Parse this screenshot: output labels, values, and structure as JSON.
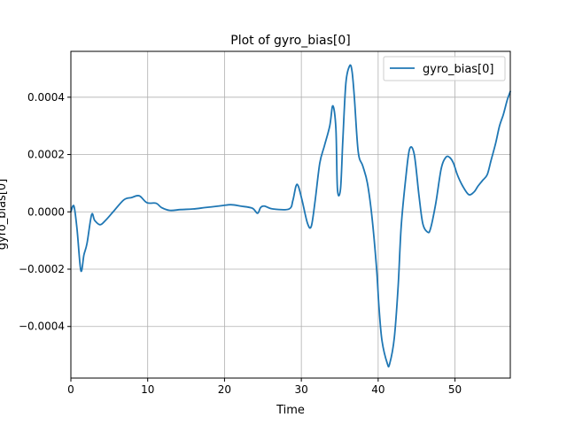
{
  "chart_data": {
    "type": "line",
    "title": "Plot of gyro_bias[0]",
    "xlabel": "Time",
    "ylabel": "gyro_bias[0]",
    "xlim": [
      0,
      57.2
    ],
    "ylim": [
      -0.00058,
      0.00056
    ],
    "xticks": [
      0,
      10,
      20,
      30,
      40,
      50
    ],
    "xtick_labels": [
      "0",
      "10",
      "20",
      "30",
      "40",
      "50"
    ],
    "yticks": [
      -0.0004,
      -0.0002,
      0.0,
      0.0002,
      0.0004
    ],
    "ytick_labels": [
      "−0.0004",
      "−0.0002",
      "0.0000",
      "0.0002",
      "0.0004"
    ],
    "grid": true,
    "legend": "top-right",
    "series": [
      {
        "name": "gyro_bias[0]",
        "color": "#1f77b4",
        "x": [
          0,
          0.4,
          0.8,
          1.3,
          1.7,
          2.1,
          2.7,
          3.1,
          3.8,
          4.5,
          5.5,
          6.9,
          7.9,
          8.9,
          9.9,
          11.1,
          11.8,
          12.9,
          14.3,
          15.9,
          17.5,
          19.2,
          20.8,
          22.1,
          23.6,
          24.3,
          24.7,
          25.2,
          26.3,
          28.4,
          28.9,
          29.3,
          29.6,
          30.1,
          30.8,
          31.3,
          31.8,
          32.4,
          33.0,
          33.7,
          34.1,
          34.5,
          34.7,
          35.1,
          35.4,
          35.8,
          36.3,
          36.6,
          36.9,
          37.4,
          38.0,
          38.6,
          39.2,
          39.8,
          40.1,
          40.5,
          41.2,
          41.5,
          42.1,
          42.6,
          43.0,
          43.6,
          44.1,
          44.7,
          45.3,
          45.8,
          46.4,
          46.8,
          47.5,
          48.2,
          48.8,
          49.3,
          49.8,
          50.3,
          51.0,
          51.8,
          52.5,
          53.0,
          53.6,
          54.2,
          54.7,
          55.3,
          55.8,
          56.3,
          56.8,
          57.2
        ],
        "y": [
          0.0,
          2e-05,
          -6e-05,
          -0.000205,
          -0.00015,
          -0.00011,
          -1e-05,
          -3e-05,
          -4.5e-05,
          -3e-05,
          0.0,
          4.2e-05,
          5e-05,
          5.6e-05,
          3.2e-05,
          3e-05,
          1.5e-05,
          5e-06,
          8e-06,
          1e-05,
          1.5e-05,
          2e-05,
          2.5e-05,
          2e-05,
          1.3e-05,
          -5e-06,
          1.5e-05,
          2e-05,
          1e-05,
          1e-05,
          4e-05,
          9e-05,
          9e-05,
          4e-05,
          -4e-05,
          -5e-05,
          4e-05,
          0.00017,
          0.00023,
          0.0003,
          0.00037,
          0.00029,
          8e-05,
          8e-05,
          0.00025,
          0.00045,
          0.00051,
          0.00049,
          0.0004,
          0.00021,
          0.00016,
          0.0001,
          -2e-05,
          -0.0002,
          -0.00033,
          -0.00045,
          -0.00053,
          -0.00053,
          -0.00044,
          -0.00026,
          -5e-05,
          0.00012,
          0.00022,
          0.0002,
          6e-05,
          -4e-05,
          -7e-05,
          -6e-05,
          3e-05,
          0.00015,
          0.00019,
          0.00019,
          0.00017,
          0.00013,
          9e-05,
          6e-05,
          7e-05,
          9e-05,
          0.00011,
          0.00013,
          0.00018,
          0.00024,
          0.0003,
          0.00034,
          0.00039,
          0.00042
        ]
      }
    ]
  }
}
